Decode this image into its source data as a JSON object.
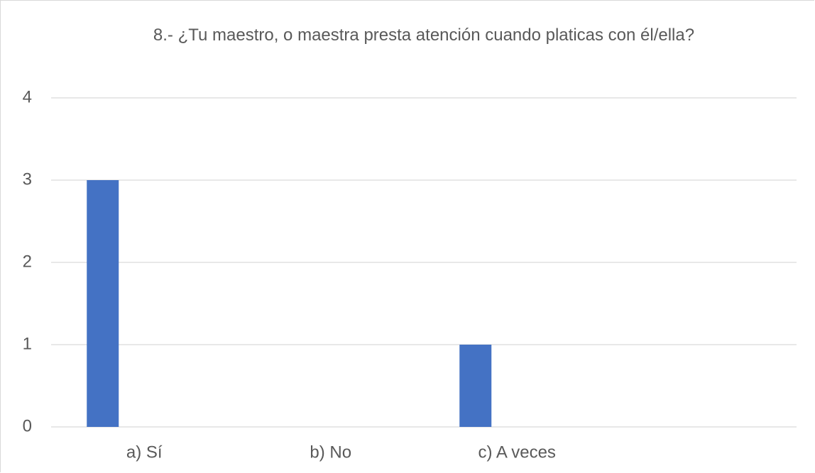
{
  "chart_data": {
    "type": "bar",
    "title": "8.- ¿Tu maestro, o maestra presta atención cuando platicas con él/ella?",
    "categories": [
      "a) Sí",
      "b) No",
      "c) A veces",
      null
    ],
    "values": [
      3,
      0,
      1,
      null
    ],
    "color": "#4472c4",
    "ylim": [
      0,
      4
    ],
    "yticks": [
      0,
      1,
      2,
      3,
      4
    ],
    "grid": true
  }
}
